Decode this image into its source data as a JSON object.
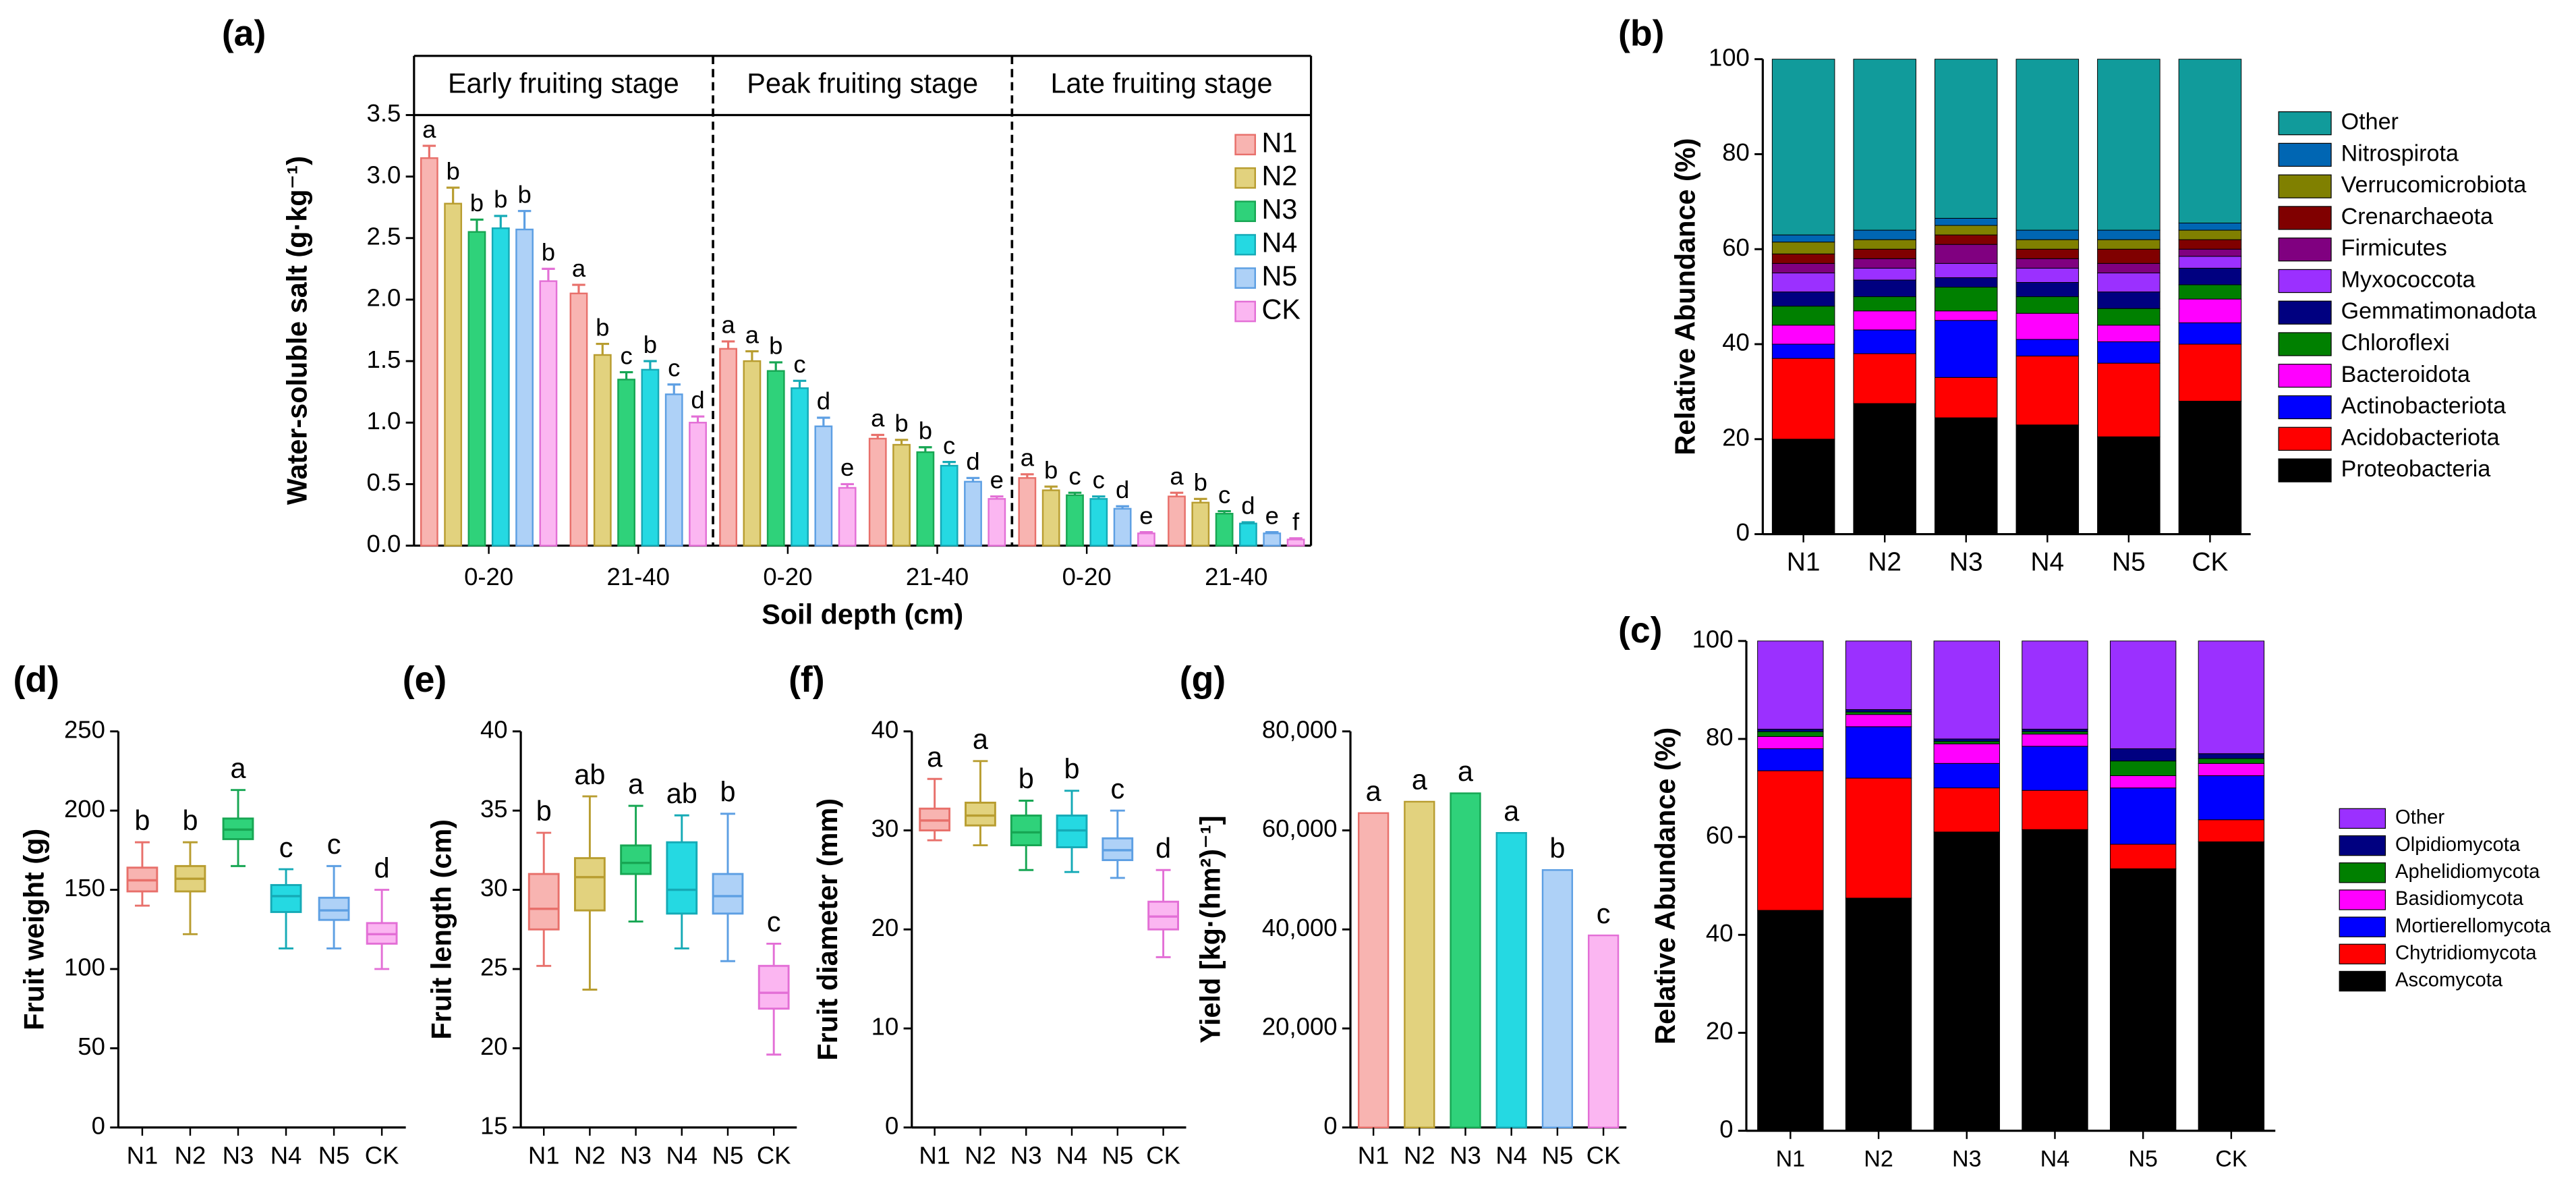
{
  "chart_data": [
    {
      "type": "bar",
      "panel_label": "(a)",
      "ylabel": "Water-soluble salt (g·kg⁻¹)",
      "xlabel": "Soil depth (cm)",
      "facets": [
        "Early fruiting stage",
        "Peak fruiting stage",
        "Late fruiting stage"
      ],
      "categories": [
        "0-20",
        "21-40",
        "0-20",
        "21-40",
        "0-20",
        "21-40"
      ],
      "ylim": [
        0,
        3.5
      ],
      "yticks": [
        {
          "value": 0,
          "label": "0.0"
        },
        0.5,
        {
          "value": 1,
          "label": "1.0"
        },
        1.5,
        {
          "value": 2,
          "label": "2.0"
        },
        2.5,
        {
          "value": 3,
          "label": "3.0"
        },
        3.5
      ],
      "legend": "upper right",
      "series": [
        {
          "name": "N1",
          "color": "#f8b4b1",
          "edgecolor": "#e8706b",
          "values": [
            3.15,
            2.05,
            1.6,
            0.87,
            0.55,
            0.4
          ],
          "errors": [
            0.1,
            0.07,
            0.06,
            0.03,
            0.03,
            0.03
          ],
          "letters": [
            "a",
            "a",
            "a",
            "a",
            "a",
            "a"
          ]
        },
        {
          "name": "N2",
          "color": "#e2d27e",
          "edgecolor": "#b89d30",
          "values": [
            2.78,
            1.55,
            1.5,
            0.82,
            0.45,
            0.35
          ],
          "errors": [
            0.13,
            0.09,
            0.08,
            0.04,
            0.03,
            0.03
          ],
          "letters": [
            "b",
            "b",
            "a",
            "b",
            "b",
            "b"
          ]
        },
        {
          "name": "N3",
          "color": "#2fd27a",
          "edgecolor": "#17a653",
          "values": [
            2.55,
            1.35,
            1.42,
            0.76,
            0.41,
            0.26
          ],
          "errors": [
            0.1,
            0.06,
            0.07,
            0.04,
            0.02,
            0.02
          ],
          "letters": [
            "b",
            "c",
            "b",
            "b",
            "c",
            "c"
          ]
        },
        {
          "name": "N4",
          "color": "#25d9e2",
          "edgecolor": "#15aab6",
          "values": [
            2.58,
            1.43,
            1.28,
            0.65,
            0.38,
            0.18
          ],
          "errors": [
            0.1,
            0.07,
            0.06,
            0.03,
            0.02,
            0.01
          ],
          "letters": [
            "b",
            "b",
            "c",
            "c",
            "c",
            "d"
          ]
        },
        {
          "name": "N5",
          "color": "#aed1f7",
          "edgecolor": "#5d9fe3",
          "values": [
            2.57,
            1.23,
            0.97,
            0.52,
            0.3,
            0.1
          ],
          "errors": [
            0.15,
            0.08,
            0.07,
            0.03,
            0.02,
            0.01
          ],
          "letters": [
            "b",
            "c",
            "d",
            "d",
            "d",
            "e"
          ]
        },
        {
          "name": "CK",
          "color": "#fbb6f1",
          "edgecolor": "#e36fd6",
          "values": [
            2.15,
            1.0,
            0.47,
            0.38,
            0.1,
            0.05
          ],
          "errors": [
            0.1,
            0.05,
            0.03,
            0.02,
            0.01,
            0.01
          ],
          "letters": [
            "b",
            "d",
            "e",
            "e",
            "e",
            "f"
          ]
        }
      ]
    },
    {
      "type": "stacked_bar",
      "panel_label": "(b)",
      "ylabel": "Relative Abundance (%)",
      "categories": [
        "N1",
        "N2",
        "N3",
        "N4",
        "N5",
        "CK"
      ],
      "ylim": [
        0,
        100
      ],
      "yticks": [
        0,
        20,
        40,
        60,
        80,
        100
      ],
      "legend": "right",
      "series": [
        {
          "name": "Proteobacteria",
          "color": "#000000",
          "values": [
            20,
            27.5,
            24.5,
            23,
            20.5,
            28
          ]
        },
        {
          "name": "Acidobacteriota",
          "color": "#ff0000",
          "values": [
            17,
            10.5,
            8.5,
            14.5,
            15.5,
            12
          ]
        },
        {
          "name": "Actinobacteriota",
          "color": "#0000ff",
          "values": [
            3,
            5,
            12,
            3.5,
            4.5,
            4.5
          ]
        },
        {
          "name": "Bacteroidota",
          "color": "#ff00ff",
          "values": [
            4,
            4,
            2,
            5.5,
            3.5,
            5
          ]
        },
        {
          "name": "Chloroflexi",
          "color": "#008000",
          "values": [
            4,
            3,
            5,
            3.5,
            3.5,
            3
          ]
        },
        {
          "name": "Gemmatimonadota",
          "color": "#000080",
          "values": [
            3,
            3.5,
            2,
            3,
            3.5,
            3.5
          ]
        },
        {
          "name": "Myxococcota",
          "color": "#9b30ff",
          "values": [
            4,
            2.5,
            3,
            3,
            4,
            2.5
          ]
        },
        {
          "name": "Firmicutes",
          "color": "#800080",
          "values": [
            2,
            2,
            4,
            2,
            2,
            1.5
          ]
        },
        {
          "name": "Crenarchaeota",
          "color": "#800000",
          "values": [
            2,
            2,
            2,
            2,
            3,
            2
          ]
        },
        {
          "name": "Verrucomicrobiota",
          "color": "#808000",
          "values": [
            2.5,
            2,
            2,
            2,
            2,
            2
          ]
        },
        {
          "name": "Nitrospirota",
          "color": "#0066b3",
          "values": [
            1.5,
            2,
            1.5,
            2,
            2,
            1.5
          ]
        },
        {
          "name": "Other",
          "color": "#119b9b",
          "values": [
            37,
            36,
            33.5,
            36,
            36,
            34.5
          ]
        }
      ]
    },
    {
      "type": "stacked_bar",
      "panel_label": "(c)",
      "ylabel": "Relative Abundance (%)",
      "categories": [
        "N1",
        "N2",
        "N3",
        "N4",
        "N5",
        "CK"
      ],
      "ylim": [
        0,
        100
      ],
      "yticks": [
        0,
        20,
        40,
        60,
        80,
        100
      ],
      "legend": "right",
      "series": [
        {
          "name": "Ascomycota",
          "color": "#000000",
          "values": [
            45,
            47.5,
            61,
            61.5,
            53.5,
            59
          ]
        },
        {
          "name": "Chytridiomycota",
          "color": "#ff0000",
          "values": [
            28.5,
            24.5,
            9,
            8,
            5,
            4.5
          ]
        },
        {
          "name": "Mortierellomycota",
          "color": "#0000ff",
          "values": [
            4.5,
            10.5,
            5,
            9,
            11.5,
            9
          ]
        },
        {
          "name": "Basidiomycota",
          "color": "#ff00ff",
          "values": [
            2.5,
            2.5,
            4,
            2.5,
            2.5,
            2.5
          ]
        },
        {
          "name": "Aphelidiomycota",
          "color": "#008000",
          "values": [
            1,
            0.5,
            0.5,
            0.5,
            3,
            1
          ]
        },
        {
          "name": "Olpidiomycota",
          "color": "#000080",
          "values": [
            0.5,
            0.5,
            0.5,
            0.5,
            2.5,
            1
          ]
        },
        {
          "name": "Other",
          "color": "#9b30ff",
          "values": [
            18,
            14,
            20,
            18,
            22,
            23
          ]
        }
      ]
    },
    {
      "type": "box",
      "panel_label": "(d)",
      "ylabel": "Fruit weight (g)",
      "categories": [
        "N1",
        "N2",
        "N3",
        "N4",
        "N5",
        "CK"
      ],
      "ylim": [
        0,
        250
      ],
      "yticks": [
        0,
        50,
        100,
        150,
        200,
        250
      ],
      "colors": [
        "#f8b4b1",
        "#e2d27e",
        "#2fd27a",
        "#25d9e2",
        "#aed1f7",
        "#fbb6f1"
      ],
      "edgecolors": [
        "#e8706b",
        "#b89d30",
        "#17a653",
        "#15aab6",
        "#5d9fe3",
        "#e36fd6"
      ],
      "min": [
        140,
        122,
        165,
        113,
        113,
        100
      ],
      "q1": [
        149,
        149,
        182,
        136,
        131,
        116
      ],
      "median": [
        156,
        157,
        188,
        146,
        137,
        122
      ],
      "q3": [
        164,
        165,
        195,
        153,
        145,
        129
      ],
      "max": [
        180,
        180,
        213,
        163,
        165,
        150
      ],
      "letters": [
        "b",
        "b",
        "a",
        "c",
        "c",
        "d"
      ]
    },
    {
      "type": "box",
      "panel_label": "(e)",
      "ylabel": "Fruit length (cm)",
      "categories": [
        "N1",
        "N2",
        "N3",
        "N4",
        "N5",
        "CK"
      ],
      "ylim": [
        15,
        40
      ],
      "yticks": [
        15,
        20,
        25,
        30,
        35,
        40
      ],
      "colors": [
        "#f8b4b1",
        "#e2d27e",
        "#2fd27a",
        "#25d9e2",
        "#aed1f7",
        "#fbb6f1"
      ],
      "edgecolors": [
        "#e8706b",
        "#b89d30",
        "#17a653",
        "#15aab6",
        "#5d9fe3",
        "#e36fd6"
      ],
      "min": [
        25.2,
        23.7,
        28,
        26.3,
        25.5,
        19.6
      ],
      "q1": [
        27.5,
        28.7,
        31,
        28.5,
        28.5,
        22.5
      ],
      "median": [
        28.8,
        30.8,
        31.7,
        30,
        29.6,
        23.5
      ],
      "q3": [
        31,
        32,
        32.8,
        33,
        31,
        25.2
      ],
      "max": [
        33.6,
        35.9,
        35.3,
        34.7,
        34.8,
        26.6
      ],
      "letters": [
        "b",
        "ab",
        "a",
        "ab",
        "b",
        "c"
      ]
    },
    {
      "type": "box",
      "panel_label": "(f)",
      "ylabel": "Fruit diameter (mm)",
      "categories": [
        "N1",
        "N2",
        "N3",
        "N4",
        "N5",
        "CK"
      ],
      "ylim": [
        0,
        40
      ],
      "yticks": [
        0,
        10,
        20,
        30,
        40
      ],
      "colors": [
        "#f8b4b1",
        "#e2d27e",
        "#2fd27a",
        "#25d9e2",
        "#aed1f7",
        "#fbb6f1"
      ],
      "edgecolors": [
        "#e8706b",
        "#b89d30",
        "#17a653",
        "#15aab6",
        "#5d9fe3",
        "#e36fd6"
      ],
      "min": [
        29,
        28.5,
        26,
        25.8,
        25.2,
        17.2
      ],
      "q1": [
        30,
        30.5,
        28.5,
        28.3,
        27,
        20
      ],
      "median": [
        31,
        31.5,
        29.8,
        30,
        28,
        21.3
      ],
      "q3": [
        32.2,
        32.8,
        31.5,
        31.5,
        29.2,
        22.8
      ],
      "max": [
        35.2,
        37,
        33,
        34,
        32,
        26
      ],
      "letters": [
        "a",
        "a",
        "b",
        "b",
        "c",
        "d"
      ]
    },
    {
      "type": "bar",
      "panel_label": "(g)",
      "ylabel": "Yield [kg·(hm²)⁻¹]",
      "categories": [
        "N1",
        "N2",
        "N3",
        "N4",
        "N5",
        "CK"
      ],
      "ylim": [
        0,
        80000
      ],
      "yticks": [
        0,
        {
          "value": 20000,
          "label": "20,000"
        },
        {
          "value": 40000,
          "label": "40,000"
        },
        {
          "value": 60000,
          "label": "60,000"
        },
        {
          "value": 80000,
          "label": "80,000"
        }
      ],
      "values": [
        63500,
        65800,
        67500,
        59500,
        52000,
        38800
      ],
      "colors": [
        "#f8b4b1",
        "#e2d27e",
        "#2fd27a",
        "#25d9e2",
        "#aed1f7",
        "#fbb6f1"
      ],
      "edgecolors": [
        "#e8706b",
        "#b89d30",
        "#17a653",
        "#15aab6",
        "#5d9fe3",
        "#e36fd6"
      ],
      "letters": [
        "a",
        "a",
        "a",
        "a",
        "b",
        "c"
      ]
    }
  ]
}
